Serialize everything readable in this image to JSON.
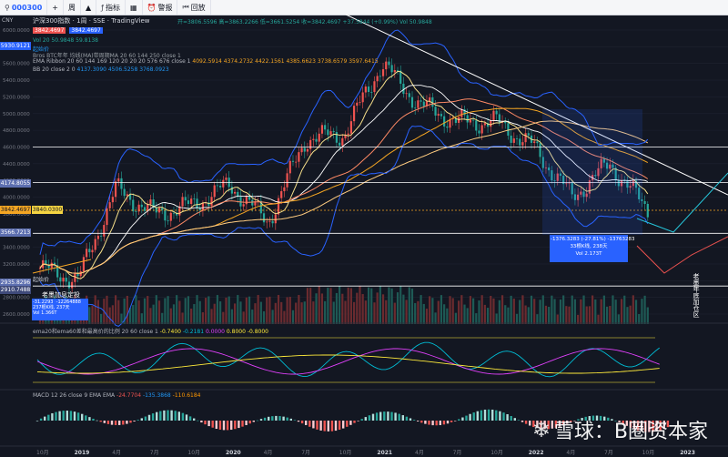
{
  "toolbar": {
    "symbol": "000300",
    "interval": "周",
    "indicators": "指标",
    "compare_icon": "grid-icon",
    "alert": "警报",
    "replay": "回放"
  },
  "legend": {
    "currency": "CNY",
    "name": "沪深300指数",
    "interval": "1周",
    "exchange": "SSE",
    "source": "TradingView",
    "ohlc": "开=3806.5596  高=3863.2266  低=3661.5254  收=3842.4697  +37.5844 (+0.99%)  Vol 50.9848",
    "price_red": "3842.4697",
    "price_blue": "3842.4697",
    "vol": "Vol 20  50.9848  59.8138",
    "vol_sub": "起始价",
    "ind1": "Bros BTC年年 均线(MA)带周期MA 20 60 144 250 close 1",
    "ema_ribbon_label": "EMA Ribbon 20 60 144 169 120 20 20 20 576 676 close 1",
    "ema_ribbon_values": "4092.5914  4374.2732  4422.1561  4385.6623  3738.6579  3597.6415",
    "bb_label": "BB 20 close 2 0",
    "bb_values": "4137.3090  4506.5258  3768.0923"
  },
  "price_axis": [
    "6000.0000",
    "5800.0000",
    "5600.0000",
    "5400.0000",
    "5200.0000",
    "5000.0000",
    "4800.0000",
    "4600.0000",
    "4400.0000",
    "4200.0000",
    "4000.0000",
    "3800.0000",
    "3600.0000",
    "3400.0000",
    "3200.0000",
    "3000.0000",
    "2800.0000",
    "2600.0000"
  ],
  "price_labels": {
    "top": "5930.9121",
    "mid": "4174.8055",
    "current": "3842.4697",
    "current2": "3840.0300",
    "low1": "3566.7213",
    "low2": "2935.8296",
    "low3": "2910.7488"
  },
  "annotations": {
    "buy_label": "老墨加息定投",
    "measure_left": "-31.2293  -12264888\n237根K线, 237天\nVol 1.366T",
    "measure_right": "-1376.3283 (-27.81%) -13763283\n33根K线, 238天\nVol 2.173T",
    "right_vertical": "老墨年底加仓区",
    "start_price": "起始价"
  },
  "osc1": {
    "label": "ema20和ema60差和最高价的比例 20 60 close 1",
    "v1": "-0.7400",
    "v2": "-0.2181",
    "v3": "0.0000",
    "v4": "0.8000",
    "v5": "-0.8000"
  },
  "macd": {
    "label": "MACD 12 26 close 9 EMA EMA",
    "v1": "-24.7704",
    "v2": "-135.3868",
    "v3": "-110.6184"
  },
  "time_axis": [
    "10月",
    "2019",
    "4月",
    "7月",
    "10月",
    "2020",
    "4月",
    "7月",
    "10月",
    "2021",
    "4月",
    "7月",
    "10月",
    "2022",
    "4月",
    "7月",
    "10月",
    "2023"
  ],
  "watermark": "雪球：B圈资本家",
  "chart_data": {
    "type": "line",
    "title": "沪深300指数 1周 SSE",
    "x": [
      "2018-10",
      "2019-01",
      "2019-04",
      "2019-07",
      "2019-10",
      "2020-01",
      "2020-04",
      "2020-07",
      "2020-10",
      "2021-01",
      "2021-04",
      "2021-07",
      "2021-10",
      "2022-01",
      "2022-04",
      "2022-07",
      "2022-10"
    ],
    "series": [
      {
        "name": "close",
        "values": [
          3150,
          3010,
          4100,
          3800,
          3900,
          4150,
          3700,
          4700,
          4750,
          5600,
          5100,
          4900,
          4900,
          4600,
          4000,
          4400,
          3842
        ]
      }
    ],
    "ylim": [
      2600,
      6000
    ],
    "ylabel": "CNY",
    "grid": true,
    "colors": {
      "up": "#ef5350",
      "down": "#26a69a",
      "background": "#131722"
    }
  }
}
